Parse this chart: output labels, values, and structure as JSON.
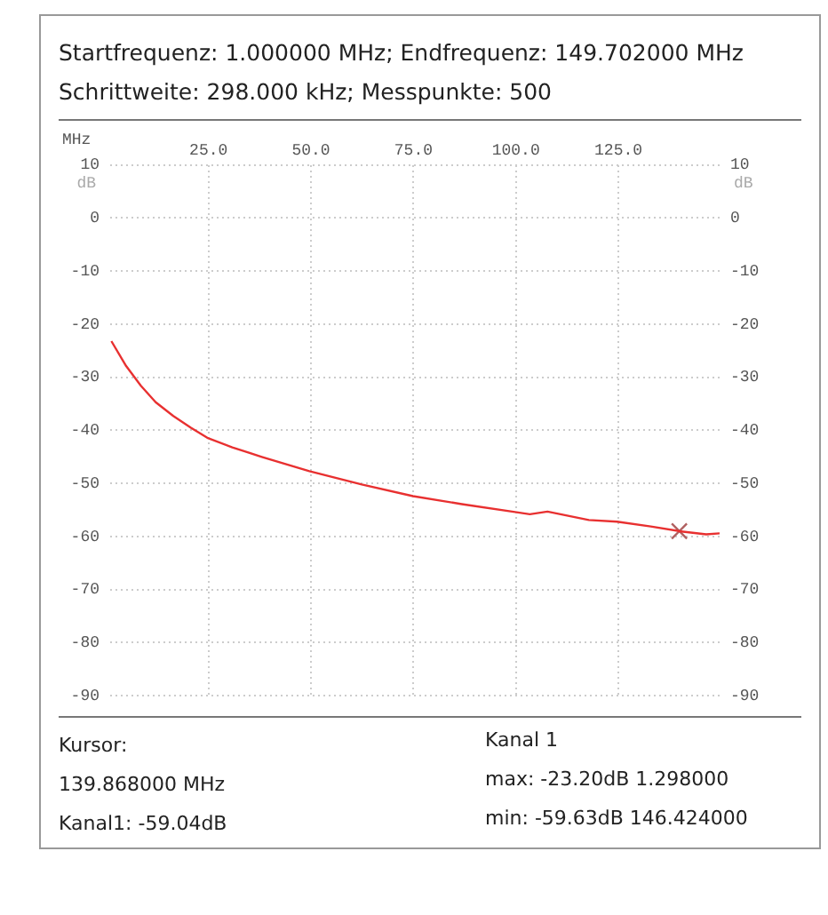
{
  "chart_data": {
    "type": "line",
    "title": "Startfrequenz: 1.000000 MHz; Endfrequenz: 149.702000 MHz",
    "subtitle": "Schrittweite: 298.000 kHz; Messpunkte: 500",
    "xlabel": "MHz",
    "ylabel": "dB",
    "y2label": "dB",
    "xlim": [
      1,
      149.702
    ],
    "xticks": [
      {
        "value": 25,
        "label": "25.0"
      },
      {
        "value": 50,
        "label": "50.0"
      },
      {
        "value": 75,
        "label": "75.0"
      },
      {
        "value": 100,
        "label": "100.0"
      },
      {
        "value": 125,
        "label": "125.0"
      }
    ],
    "ylim": [
      -90,
      10
    ],
    "yticks": [
      -90,
      -80,
      -70,
      -60,
      -50,
      -40,
      -30,
      -20,
      -10,
      0,
      10
    ],
    "y2lim": [
      -90,
      10
    ],
    "y2ticks": [
      -90,
      -80,
      -70,
      -60,
      -50,
      -40,
      -30,
      -20,
      -10,
      0,
      10
    ],
    "grid": true,
    "legend": false,
    "series": [
      {
        "color": "#e83030",
        "x": [
          1.298,
          4.9,
          8.5,
          12.1,
          16.4,
          20.7,
          24.7,
          30.8,
          38.0,
          49.6,
          62.4,
          74.9,
          86.8,
          99.8,
          103.4,
          107.7,
          117.8,
          124.7,
          132.9,
          139.868,
          146.424,
          149.702
        ],
        "values": [
          -23.2,
          -27.9,
          -31.6,
          -34.7,
          -37.3,
          -39.5,
          -41.4,
          -43.2,
          -45.0,
          -47.7,
          -50.2,
          -52.4,
          -53.9,
          -55.4,
          -55.8,
          -55.3,
          -56.9,
          -57.2,
          -58.1,
          -59.0,
          -59.6,
          -59.4
        ]
      },
      {
        "type": "scatter",
        "marker": "cross",
        "color": "#b06060",
        "x": [
          139.868
        ],
        "values": [
          -59.0
        ]
      }
    ],
    "annotations": [
      "Kursor:",
      "139.868000 MHz",
      "Kanal1: -59.04dB",
      "Kanal 1",
      "max: -23.20dB 1.298000",
      "min: -59.63dB 146.424000"
    ]
  }
}
